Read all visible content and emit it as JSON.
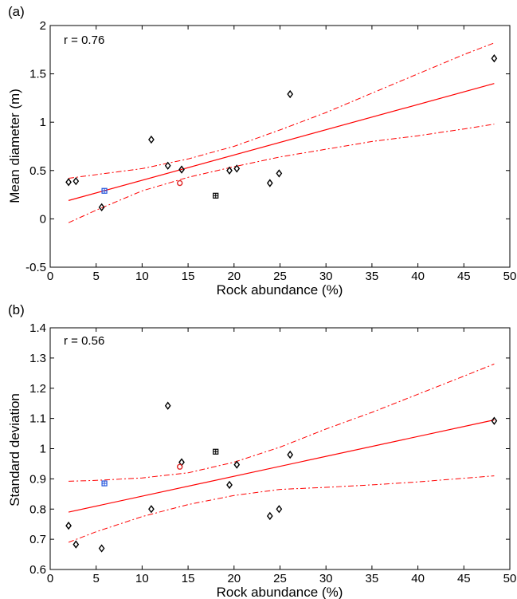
{
  "chart_data": [
    {
      "panel_label": "(a)",
      "type": "scatter",
      "annotation": "r = 0.76",
      "xlabel": "Rock abundance (%)",
      "ylabel": "Mean diameter (m)",
      "xlim": [
        0,
        50
      ],
      "ylim": [
        -0.5,
        2
      ],
      "xticks": [
        "0",
        "5",
        "10",
        "15",
        "20",
        "25",
        "30",
        "35",
        "40",
        "45",
        "50"
      ],
      "yticks": [
        "-0.5",
        "0",
        "0.5",
        "1",
        "1.5",
        "2"
      ],
      "grid": false,
      "series": [
        {
          "marker": "diamond",
          "color": "#000000",
          "points": [
            [
              2.0,
              0.38
            ],
            [
              2.8,
              0.39
            ],
            [
              5.6,
              0.12
            ],
            [
              11.0,
              0.82
            ],
            [
              12.8,
              0.55
            ],
            [
              14.3,
              0.51
            ],
            [
              19.5,
              0.5
            ],
            [
              20.3,
              0.52
            ],
            [
              23.9,
              0.37
            ],
            [
              24.9,
              0.47
            ],
            [
              26.1,
              1.29
            ],
            [
              48.3,
              1.66
            ]
          ]
        },
        {
          "marker": "square-cross",
          "color": "#2255dd",
          "points": [
            [
              5.9,
              0.29
            ]
          ]
        },
        {
          "marker": "circle",
          "color": "#dd2222",
          "points": [
            [
              14.1,
              0.37
            ]
          ]
        },
        {
          "marker": "square-cross",
          "color": "#000000",
          "points": [
            [
              18.0,
              0.24
            ]
          ]
        }
      ],
      "fit": {
        "color": "#ff0000",
        "line": [
          [
            2.0,
            0.19
          ],
          [
            48.3,
            1.4
          ]
        ]
      },
      "confidence_band": {
        "color": "#ff0000",
        "upper": [
          [
            2.0,
            0.42
          ],
          [
            10.0,
            0.52
          ],
          [
            15.0,
            0.62
          ],
          [
            20.0,
            0.75
          ],
          [
            25.0,
            0.92
          ],
          [
            30.0,
            1.1
          ],
          [
            35.0,
            1.3
          ],
          [
            40.0,
            1.5
          ],
          [
            45.0,
            1.7
          ],
          [
            48.3,
            1.82
          ]
        ],
        "lower": [
          [
            2.0,
            -0.04
          ],
          [
            5.0,
            0.09
          ],
          [
            10.0,
            0.29
          ],
          [
            15.0,
            0.43
          ],
          [
            20.0,
            0.54
          ],
          [
            25.0,
            0.64
          ],
          [
            30.0,
            0.72
          ],
          [
            35.0,
            0.8
          ],
          [
            40.0,
            0.86
          ],
          [
            45.0,
            0.93
          ],
          [
            48.3,
            0.98
          ]
        ]
      }
    },
    {
      "panel_label": "(b)",
      "type": "scatter",
      "annotation": "r = 0.56",
      "xlabel": "Rock abundance (%)",
      "ylabel": "Standard deviation",
      "xlim": [
        0,
        50
      ],
      "ylim": [
        0.6,
        1.4
      ],
      "xticks": [
        "0",
        "5",
        "10",
        "15",
        "20",
        "25",
        "30",
        "35",
        "40",
        "45",
        "50"
      ],
      "yticks": [
        "0.6",
        "0.7",
        "0.8",
        "0.9",
        "1",
        "1.1",
        "1.2",
        "1.3",
        "1.4"
      ],
      "grid": false,
      "series": [
        {
          "marker": "diamond",
          "color": "#000000",
          "points": [
            [
              2.0,
              0.745
            ],
            [
              2.8,
              0.683
            ],
            [
              5.6,
              0.67
            ],
            [
              11.0,
              0.8
            ],
            [
              12.8,
              1.142
            ],
            [
              14.3,
              0.955
            ],
            [
              19.5,
              0.88
            ],
            [
              20.3,
              0.947
            ],
            [
              23.9,
              0.777
            ],
            [
              24.9,
              0.8
            ],
            [
              26.1,
              0.98
            ],
            [
              48.3,
              1.092
            ]
          ]
        },
        {
          "marker": "square-cross",
          "color": "#2255dd",
          "points": [
            [
              5.9,
              0.885
            ]
          ]
        },
        {
          "marker": "circle",
          "color": "#dd2222",
          "points": [
            [
              14.1,
              0.94
            ]
          ]
        },
        {
          "marker": "square-cross",
          "color": "#000000",
          "points": [
            [
              18.0,
              0.99
            ]
          ]
        }
      ],
      "fit": {
        "color": "#ff0000",
        "line": [
          [
            2.0,
            0.79
          ],
          [
            48.3,
            1.095
          ]
        ]
      },
      "confidence_band": {
        "color": "#ff0000",
        "upper": [
          [
            2.0,
            0.892
          ],
          [
            5.0,
            0.895
          ],
          [
            10.0,
            0.903
          ],
          [
            15.0,
            0.92
          ],
          [
            20.0,
            0.955
          ],
          [
            25.0,
            1.005
          ],
          [
            30.0,
            1.065
          ],
          [
            35.0,
            1.12
          ],
          [
            40.0,
            1.18
          ],
          [
            45.0,
            1.24
          ],
          [
            48.3,
            1.28
          ]
        ],
        "lower": [
          [
            2.0,
            0.69
          ],
          [
            5.0,
            0.725
          ],
          [
            10.0,
            0.775
          ],
          [
            15.0,
            0.815
          ],
          [
            20.0,
            0.845
          ],
          [
            25.0,
            0.865
          ],
          [
            30.0,
            0.872
          ],
          [
            35.0,
            0.88
          ],
          [
            40.0,
            0.89
          ],
          [
            45.0,
            0.902
          ],
          [
            48.3,
            0.91
          ]
        ]
      }
    }
  ]
}
